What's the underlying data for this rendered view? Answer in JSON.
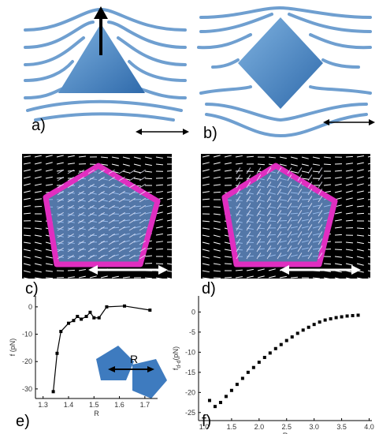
{
  "panels": {
    "a": "a)",
    "b": "b)",
    "c": "c)",
    "d": "d)",
    "e": "e)",
    "f": "f)"
  },
  "chart_data": [
    {
      "type": "line",
      "xlabel": "R",
      "ylabel": "f (pN)",
      "inset_label": "R",
      "x": [
        1.34,
        1.355,
        1.37,
        1.4,
        1.42,
        1.435,
        1.45,
        1.47,
        1.485,
        1.5,
        1.52,
        1.55,
        1.62,
        1.72
      ],
      "series": [
        {
          "color": "#000000",
          "values": [
            -31,
            -17,
            -9,
            -6,
            -5,
            -3.5,
            -4.5,
            -3.5,
            -2,
            -4,
            -4,
            0,
            0.3,
            -1.2
          ]
        }
      ],
      "xlim": [
        1.27,
        1.75
      ],
      "ylim": [
        -33.5,
        4
      ],
      "xticks": [
        1.3,
        1.4,
        1.5,
        1.6,
        1.7
      ],
      "yticks": [
        -30,
        -20,
        -10,
        0
      ],
      "connect": true
    },
    {
      "type": "scatter",
      "xlabel": "R",
      "ylabel": "f",
      "ylabel_subscript": "d-d",
      "ylabel_unit": "(pN)",
      "x": [
        1.1,
        1.2,
        1.3,
        1.4,
        1.5,
        1.6,
        1.7,
        1.8,
        1.9,
        2.0,
        2.1,
        2.2,
        2.3,
        2.4,
        2.5,
        2.6,
        2.7,
        2.8,
        2.9,
        3.0,
        3.1,
        3.2,
        3.3,
        3.4,
        3.5,
        3.6,
        3.7,
        3.8
      ],
      "series": [
        {
          "color": "#000000",
          "values": [
            -22,
            -23.5,
            -22.5,
            -21,
            -19.5,
            -18,
            -16.5,
            -15,
            -13.8,
            -12.5,
            -11.3,
            -10.2,
            -9.1,
            -8.1,
            -7.1,
            -6.2,
            -5.3,
            -4.5,
            -3.8,
            -3.1,
            -2.5,
            -2,
            -1.7,
            -1.4,
            -1.2,
            -1,
            -0.9,
            -0.8
          ]
        }
      ],
      "xlim": [
        0.9,
        4.05
      ],
      "ylim": [
        -27,
        4
      ],
      "xticks": [
        {
          "value": 1,
          "label": "1.0"
        },
        1.5,
        {
          "value": 2,
          "label": "2.0"
        },
        2.5,
        {
          "value": 3,
          "label": "3.0"
        },
        3.5,
        {
          "value": 4,
          "label": "4.0"
        }
      ],
      "yticks": [
        -25,
        -20,
        -15,
        -10,
        -5,
        0
      ],
      "connect": false
    }
  ]
}
